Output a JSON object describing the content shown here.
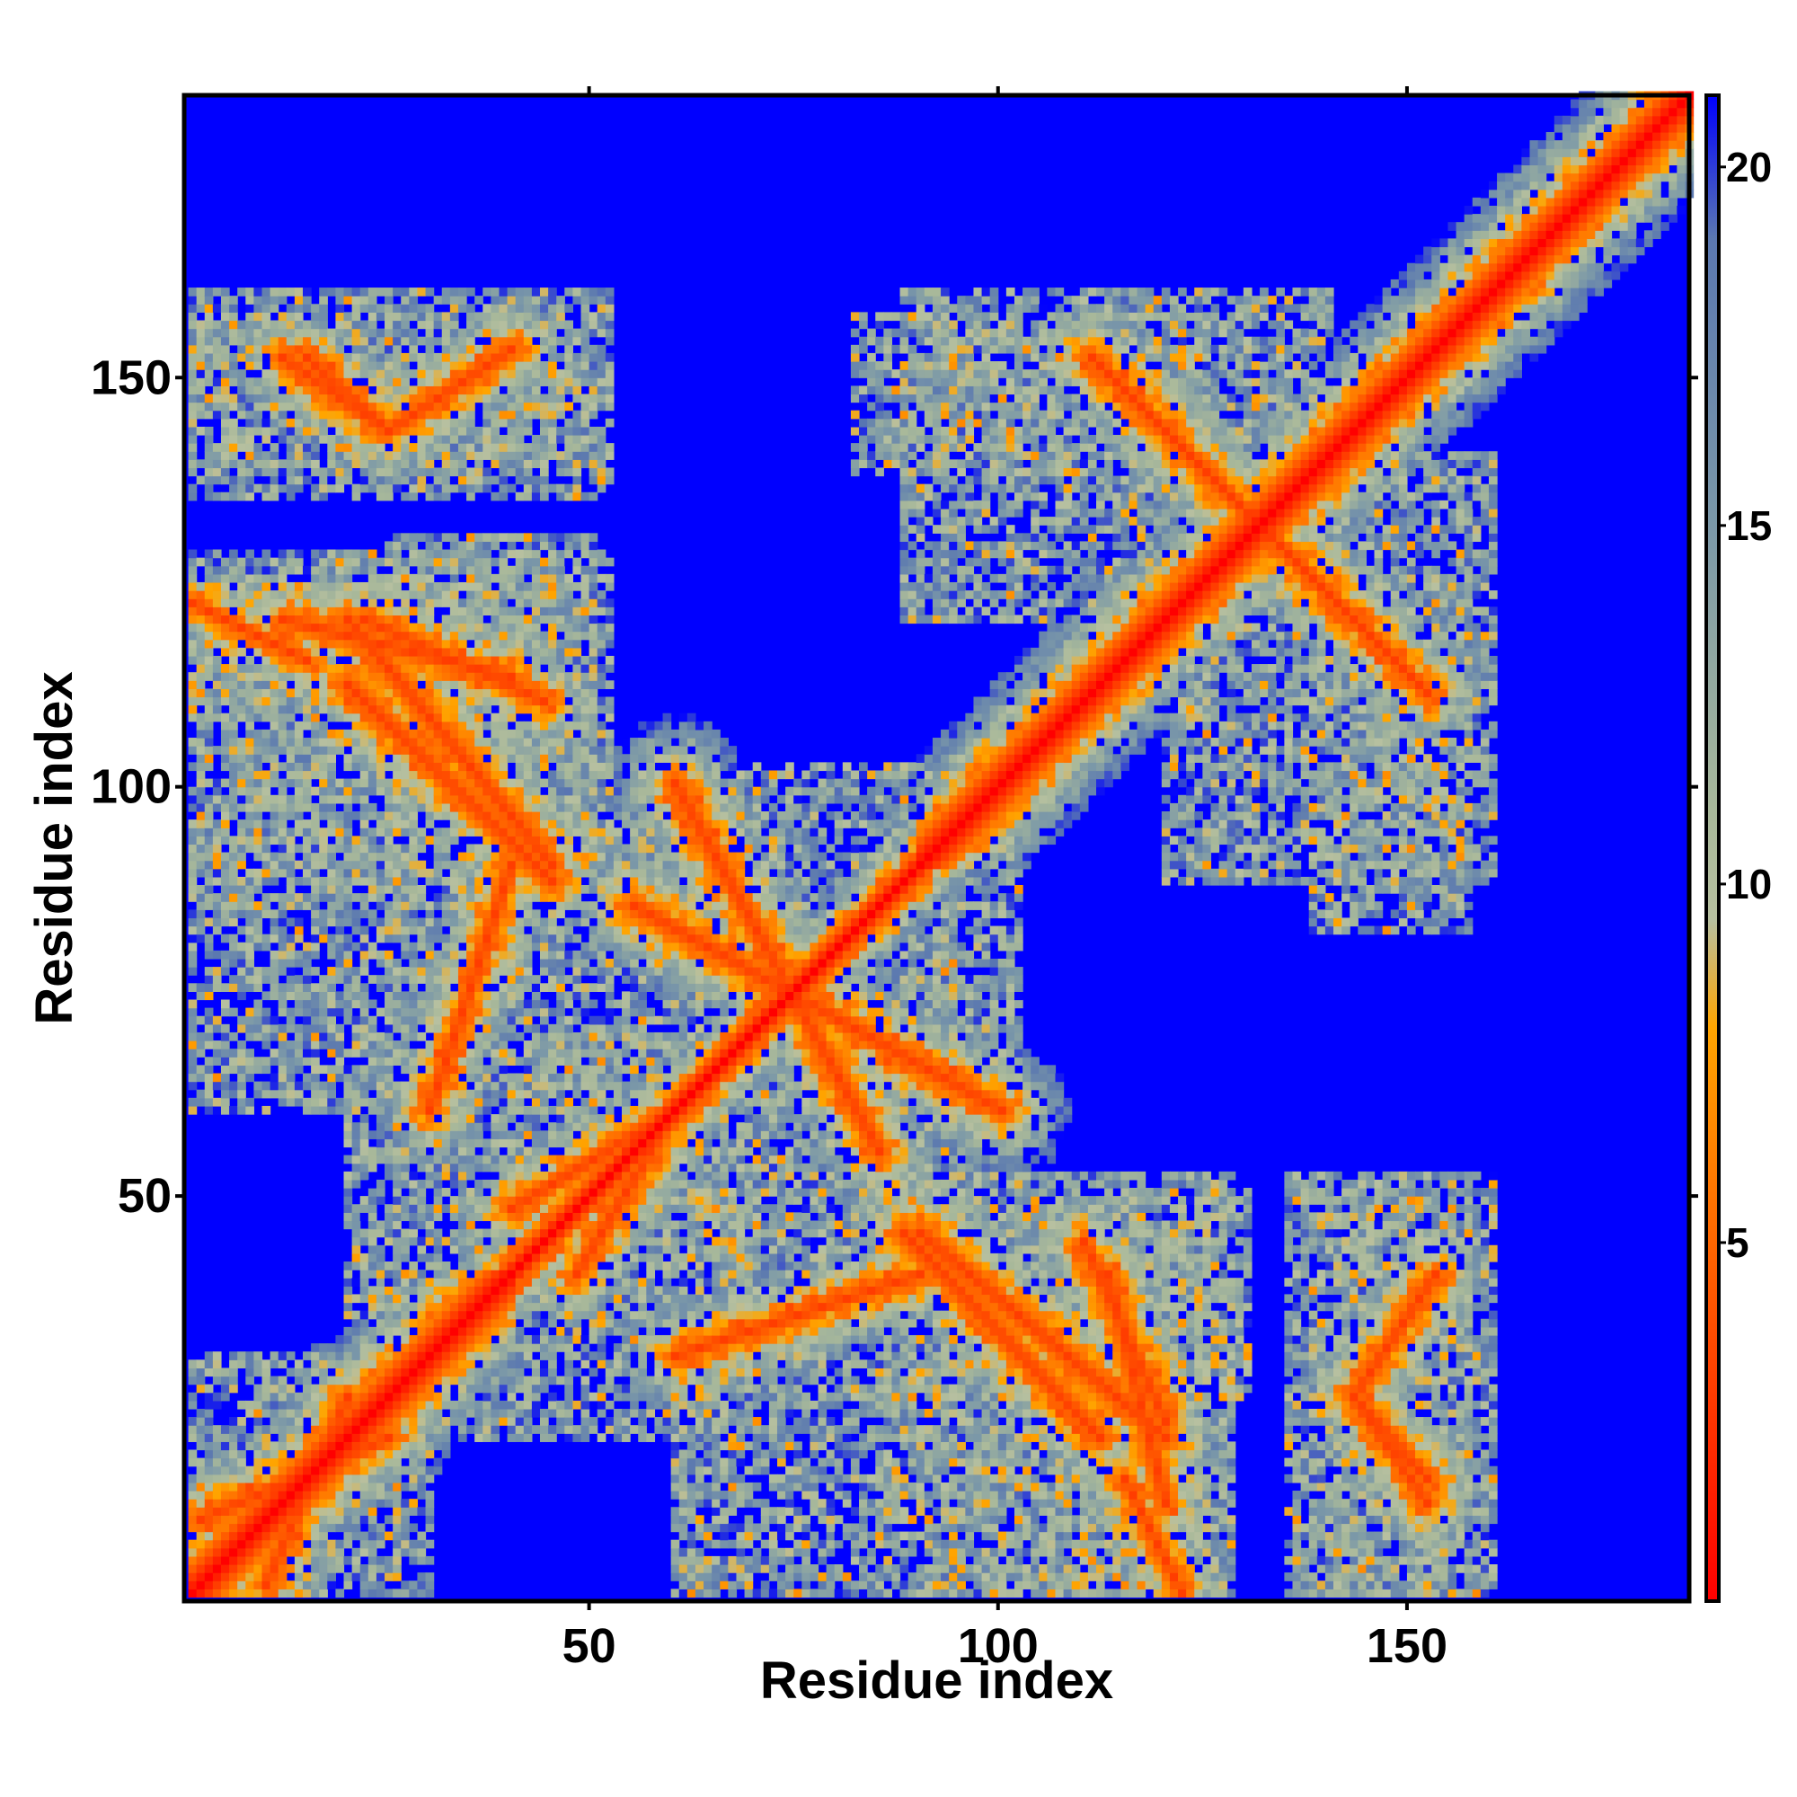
{
  "chart_data": {
    "type": "heatmap",
    "title": "",
    "xlabel": "Residue index",
    "ylabel": "Residue index",
    "n_residues": 184,
    "xlim": [
      1,
      184
    ],
    "ylim": [
      1,
      184
    ],
    "x_ticks": [
      50,
      100,
      150
    ],
    "y_ticks": [
      50,
      100,
      150
    ],
    "colorbar": {
      "range": [
        0,
        21
      ],
      "ticks": [
        5,
        10,
        15,
        20
      ],
      "stops": [
        {
          "value": 0,
          "color": "#ff0000"
        },
        {
          "value": 5,
          "color": "#ff6600"
        },
        {
          "value": 8,
          "color": "#ffa500"
        },
        {
          "value": 9.5,
          "color": "#b7c0a0"
        },
        {
          "value": 11,
          "color": "#a8b89a"
        },
        {
          "value": 15,
          "color": "#7b98a8"
        },
        {
          "value": 19,
          "color": "#5b78b0"
        },
        {
          "value": 21,
          "color": "#0000ff"
        }
      ],
      "max_color": "#0000ff"
    },
    "description_features": {
      "diagonal": "distance ~0 along i=j, band widening between residues 1-35 and 85-184",
      "antiparallel_contact": {
        "from": [
          113,
          150
        ],
        "to": [
          152,
          111
        ]
      }
    },
    "contact_regions": [
      {
        "x": [
          1,
          50
        ],
        "y": [
          138,
          157
        ]
      },
      {
        "x": [
          82,
          125
        ],
        "y": [
          138,
          157
        ]
      },
      {
        "x": [
          120,
          160
        ],
        "y": [
          88,
          140
        ]
      },
      {
        "x": [
          1,
          52
        ],
        "y": [
          85,
          128
        ]
      },
      {
        "x": [
          40,
          102
        ],
        "y": [
          60,
          96
        ]
      },
      {
        "x": [
          20,
          70
        ],
        "y": [
          20,
          70
        ]
      },
      {
        "x": [
          88,
          130
        ],
        "y": [
          25,
          50
        ]
      },
      {
        "x": [
          135,
          160
        ],
        "y": [
          1,
          52
        ]
      },
      {
        "x": [
          1,
          30
        ],
        "y": [
          1,
          30
        ]
      },
      {
        "x": [
          60,
          125
        ],
        "y": [
          1,
          30
        ]
      },
      {
        "x": [
          110,
          125
        ],
        "y": [
          1,
          45
        ]
      }
    ]
  }
}
